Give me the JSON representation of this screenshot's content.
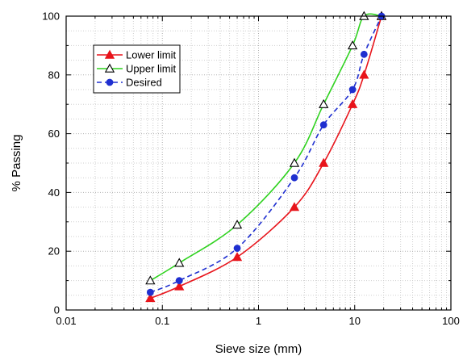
{
  "chart_data": {
    "type": "line",
    "xlabel": "Sieve size (mm)",
    "ylabel": "% Passing",
    "xscale": "log",
    "xlim": [
      0.01,
      100
    ],
    "ylim": [
      0,
      100
    ],
    "x_ticks": [
      0.01,
      0.1,
      1,
      10,
      100
    ],
    "x_tick_labels": [
      "0.01",
      "0.1",
      "1",
      "10",
      "100"
    ],
    "y_ticks": [
      0,
      20,
      40,
      60,
      80,
      100
    ],
    "y_tick_labels": [
      "0",
      "20",
      "40",
      "60",
      "80",
      "100"
    ],
    "grid": "minor dotted, major dotted",
    "legend_position": "upper-left",
    "series": [
      {
        "name": "Lower limit",
        "color": "#e8141b",
        "marker": "filled-triangle",
        "line_style": "solid",
        "x": [
          0.075,
          0.15,
          0.6,
          2.36,
          4.75,
          9.5,
          12.5,
          19
        ],
        "y": [
          4,
          8,
          18,
          35,
          50,
          70,
          80,
          100
        ]
      },
      {
        "name": "Upper limit",
        "color": "#2fd21f",
        "marker": "open-triangle",
        "line_style": "solid",
        "x": [
          0.075,
          0.15,
          0.6,
          2.36,
          4.75,
          9.5,
          12.5,
          19
        ],
        "y": [
          10,
          16,
          29,
          50,
          70,
          90,
          100,
          100
        ]
      },
      {
        "name": "Desired",
        "color": "#1f2fd0",
        "marker": "filled-circle",
        "line_style": "dashed",
        "x": [
          0.075,
          0.15,
          0.6,
          2.36,
          4.75,
          9.5,
          12.5,
          19
        ],
        "y": [
          6,
          10,
          21,
          45,
          63,
          75,
          87,
          100
        ]
      }
    ]
  }
}
